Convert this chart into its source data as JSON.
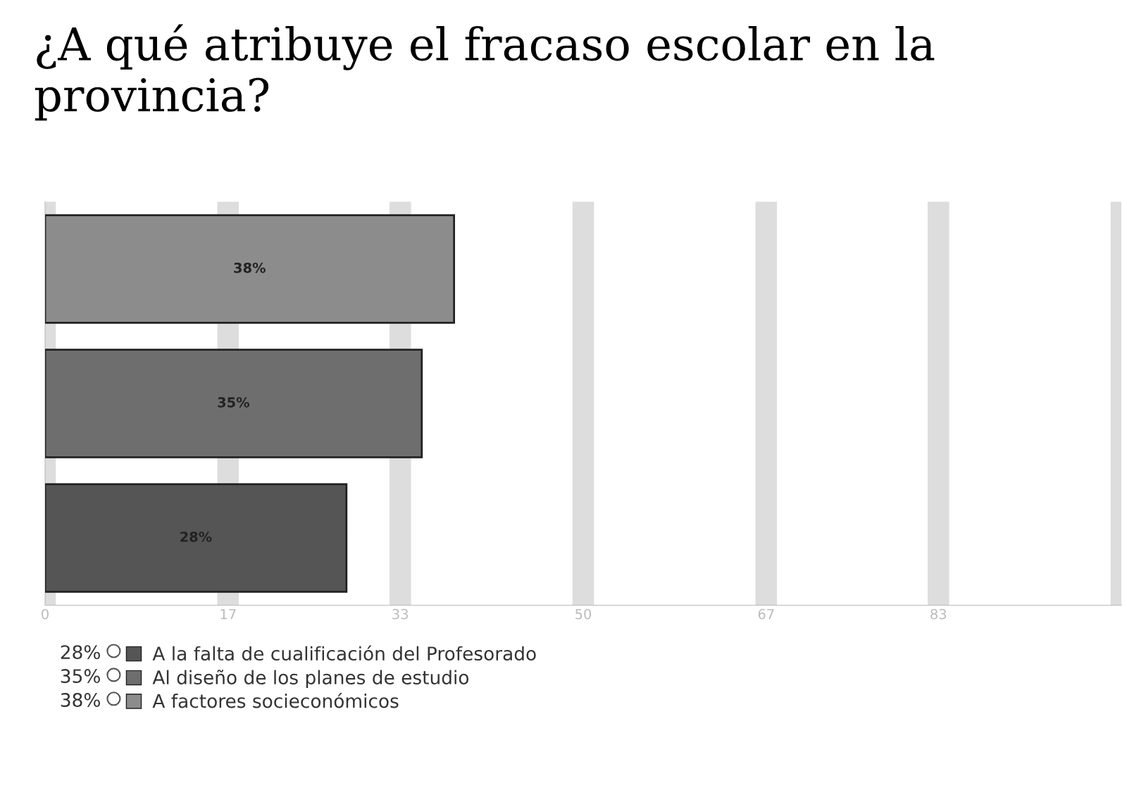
{
  "chart_data": {
    "type": "bar",
    "orientation": "horizontal",
    "title": "¿A qué atribuye el fracaso escolar en la provincia?",
    "categories": [
      null,
      null,
      null
    ],
    "series": [
      {
        "name": "A factores socieconómicos",
        "color": "#8c8c8c",
        "values": [
          38,
          null,
          null
        ],
        "value_labels": [
          "38%",
          null,
          null
        ]
      },
      {
        "name": "Al diseño de los planes de estudio",
        "color": "#6e6e6e",
        "values": [
          null,
          35,
          null
        ],
        "value_labels": [
          null,
          "35%",
          null
        ]
      },
      {
        "name": "A la falta de cualificación del Profesorado",
        "color": "#555555",
        "values": [
          null,
          null,
          28
        ],
        "value_labels": [
          null,
          null,
          "28%"
        ]
      }
    ],
    "xlim": [
      0,
      100
    ],
    "xticks": [
      0,
      17,
      33,
      50,
      67,
      83,
      {
        "value": 100,
        "label": null
      }
    ],
    "grid": "x",
    "legend": "bottom left",
    "tick_labels": "x"
  }
}
